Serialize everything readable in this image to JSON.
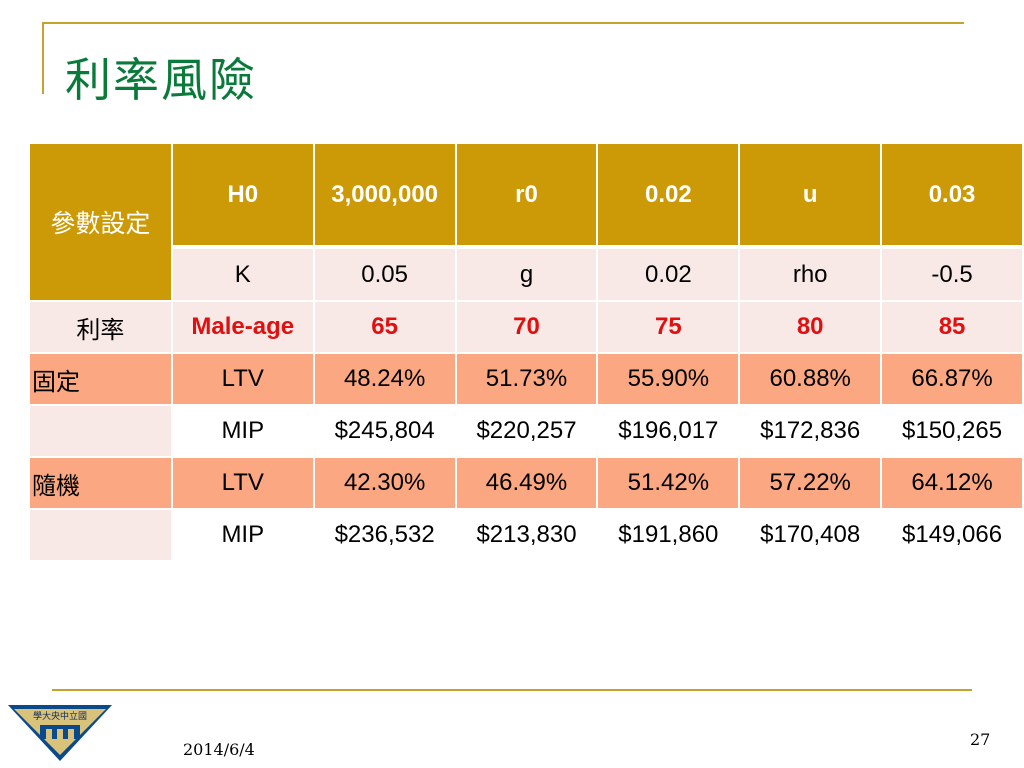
{
  "slide": {
    "title": "利率風險",
    "date": "2014/6/4",
    "page_number": "27",
    "logo_text": "學大央中立國"
  },
  "table": {
    "params_label": "參數設定",
    "row1": [
      "H0",
      "3,000,000",
      "r0",
      "0.02",
      "u",
      "0.03"
    ],
    "row2": [
      "K",
      "0.05",
      "g",
      "0.02",
      "rho",
      "-0.5"
    ],
    "age_label": "利率",
    "age_header": [
      "Male-age",
      "65",
      "70",
      "75",
      "80",
      "85"
    ],
    "fixed_label": "固定",
    "fixed_ltv": [
      "LTV",
      "48.24%",
      "51.73%",
      "55.90%",
      "60.88%",
      "66.87%"
    ],
    "fixed_mip": [
      "MIP",
      "$245,804",
      "$220,257",
      "$196,017",
      "$172,836",
      "$150,265"
    ],
    "random_label": "隨機",
    "random_ltv": [
      "LTV",
      "42.30%",
      "46.49%",
      "51.42%",
      "57.22%",
      "64.12%"
    ],
    "random_mip": [
      "MIP",
      "$236,532",
      "$213,830",
      "$191,860",
      "$170,408",
      "$149,066"
    ]
  },
  "colors": {
    "accent_gold": "#cc9a06",
    "title_green": "#0a7a3a",
    "row_orange": "#fba882",
    "row_light": "#f8e9e6",
    "highlight_red": "#e01010"
  }
}
